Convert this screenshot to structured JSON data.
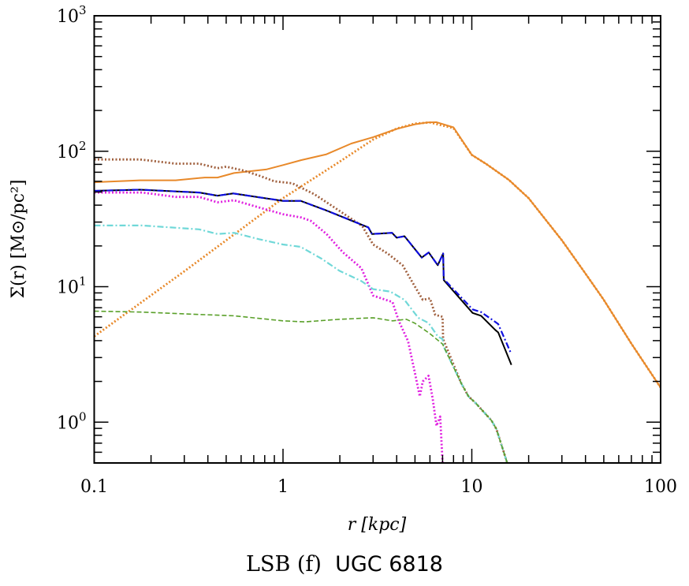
{
  "chart_data": {
    "type": "line",
    "xlabel": "r [kpc]",
    "ylabel": "Σ(r) [M⊙/pc²]",
    "xscale": "log",
    "yscale": "log",
    "xlim": [
      0.1,
      100
    ],
    "ylim": [
      0.5,
      1000
    ],
    "grid": false,
    "xticks": [
      "0.1",
      "1",
      "10",
      "100"
    ],
    "xtick_values": [
      0.1,
      1,
      10,
      100
    ],
    "yticks": [
      {
        "base": "10",
        "exp": "0",
        "value": 1
      },
      {
        "base": "10",
        "exp": "1",
        "value": 10
      },
      {
        "base": "10",
        "exp": "2",
        "value": 100
      },
      {
        "base": "10",
        "exp": "3",
        "value": 1000
      }
    ],
    "series": [
      {
        "color": "#e8892a",
        "style": "solid",
        "x": [
          0.1,
          0.175,
          0.27,
          0.385,
          0.45,
          0.55,
          0.82,
          1.0,
          1.25,
          1.7,
          2.3,
          3.0,
          4.0,
          5.0,
          5.8,
          6.5,
          8,
          10,
          12,
          15.7,
          20,
          30,
          40,
          50,
          70,
          100
        ],
        "y": [
          59,
          61,
          61,
          64,
          64,
          69,
          73.5,
          79,
          86,
          95,
          114,
          127,
          146,
          158,
          163,
          164,
          150,
          94,
          80,
          61.5,
          45,
          22,
          12.5,
          8,
          3.8,
          1.8
        ]
      },
      {
        "color": "#e8892a",
        "style": "dotted",
        "x": [
          0.1,
          0.3,
          1.0,
          2.0,
          3.0,
          4.0,
          5.0,
          6.0,
          8,
          10,
          12,
          15.7,
          20,
          30,
          40,
          50,
          70,
          100
        ],
        "y": [
          4.3,
          13,
          45,
          84,
          122,
          147,
          160,
          163,
          148,
          94,
          80,
          61.5,
          45,
          22,
          12.5,
          8,
          3.8,
          1.8
        ]
      },
      {
        "color": "#a0603e",
        "style": "dotted",
        "x": [
          0.1,
          0.175,
          0.27,
          0.36,
          0.45,
          0.5,
          0.62,
          0.76,
          0.9,
          1.12,
          1.47,
          1.87,
          2.63,
          3.0,
          3.6,
          4.3,
          5.0,
          5.5,
          6.0,
          6.4,
          7.0,
          7.05,
          8.8,
          9.6,
          10.5,
          12.7,
          13.5,
          15.4
        ],
        "y": [
          87,
          87,
          81,
          81,
          75,
          77,
          72,
          65.5,
          60,
          58,
          48,
          38.5,
          28,
          20.5,
          17.5,
          14.4,
          10,
          8,
          8.2,
          6.2,
          6,
          4.1,
          1.93,
          1.55,
          1.38,
          1.03,
          0.89,
          0.5
        ]
      },
      {
        "color": "#000000",
        "style": "solid",
        "x": [
          0.1,
          0.175,
          0.36,
          0.45,
          0.545,
          1.0,
          1.24,
          1.69,
          2.83,
          2.96,
          3.78,
          4.0,
          4.4,
          5.43,
          5.91,
          6.6,
          7.05,
          7.1,
          10.1,
          11.2,
          13.3,
          13.8,
          16.2
        ],
        "y": [
          51,
          52,
          49.6,
          47,
          48.8,
          43,
          43,
          36.6,
          27.4,
          24.5,
          25,
          23,
          23.6,
          16.4,
          17.9,
          14.4,
          17.6,
          11.2,
          6.4,
          6.1,
          4.8,
          4.6,
          2.65
        ]
      },
      {
        "color": "#1010e0",
        "style": "dashdot",
        "x": [
          0.1,
          0.175,
          0.36,
          0.45,
          0.545,
          1.0,
          1.24,
          1.69,
          2.83,
          2.96,
          3.78,
          4.0,
          4.4,
          5.43,
          5.91,
          6.6,
          7.05,
          7.1,
          10.1,
          11.2,
          13.3,
          13.8,
          16.0
        ],
        "y": [
          51,
          52,
          49.6,
          47,
          48.8,
          43,
          43,
          36.6,
          27.4,
          24.5,
          25,
          23,
          23.6,
          16.4,
          17.9,
          14.4,
          17.6,
          11.4,
          6.8,
          6.5,
          5.5,
          5.3,
          3.3
        ]
      },
      {
        "color": "#e020e0",
        "style": "dotted",
        "x": [
          0.1,
          0.18,
          0.27,
          0.36,
          0.45,
          0.55,
          0.75,
          1.0,
          1.25,
          1.4,
          1.7,
          2.07,
          2.6,
          3.0,
          3.8,
          4.1,
          4.6,
          5.0,
          5.3,
          5.5,
          5.9,
          6.2,
          6.5,
          6.8,
          7.0
        ],
        "y": [
          49.6,
          49.6,
          46,
          46,
          42,
          43.5,
          38.4,
          34.3,
          32.4,
          30.7,
          24.5,
          18,
          13.7,
          8.6,
          7.7,
          5.6,
          3.95,
          2.3,
          1.55,
          2.0,
          2.2,
          1.5,
          0.94,
          1.1,
          0.5
        ]
      },
      {
        "color": "#70d8d8",
        "style": "dashdot",
        "x": [
          0.1,
          0.18,
          0.36,
          0.45,
          0.55,
          0.75,
          1.0,
          1.24,
          1.6,
          1.99,
          2.6,
          3.0,
          3.7,
          4.4,
          5.2,
          5.9,
          6.6,
          7.0,
          7.1,
          8.8,
          9.6,
          10.5,
          12.7,
          13.5,
          15.4
        ],
        "y": [
          28.3,
          28.3,
          26.5,
          24.5,
          25,
          22.4,
          20.5,
          19.7,
          16.1,
          13.1,
          11,
          9.6,
          9.2,
          8,
          5.9,
          5.4,
          4.3,
          4.1,
          3.6,
          1.93,
          1.55,
          1.38,
          1.03,
          0.89,
          0.5
        ]
      },
      {
        "color": "#5aa02a",
        "style": "dashed",
        "x": [
          0.1,
          0.18,
          0.36,
          0.55,
          1.0,
          1.3,
          2.0,
          3.0,
          3.8,
          4.5,
          5.0,
          6.0,
          7.0,
          8.8,
          9.6,
          10.5,
          12.7,
          13.5,
          15.4
        ],
        "y": [
          6.6,
          6.5,
          6.24,
          6.1,
          5.6,
          5.5,
          5.75,
          5.9,
          5.6,
          5.75,
          5.37,
          4.5,
          3.77,
          1.93,
          1.55,
          1.38,
          1.03,
          0.89,
          0.5
        ]
      }
    ]
  },
  "caption": {
    "label": "LSB (f)",
    "galaxy": "UGC 6818"
  }
}
